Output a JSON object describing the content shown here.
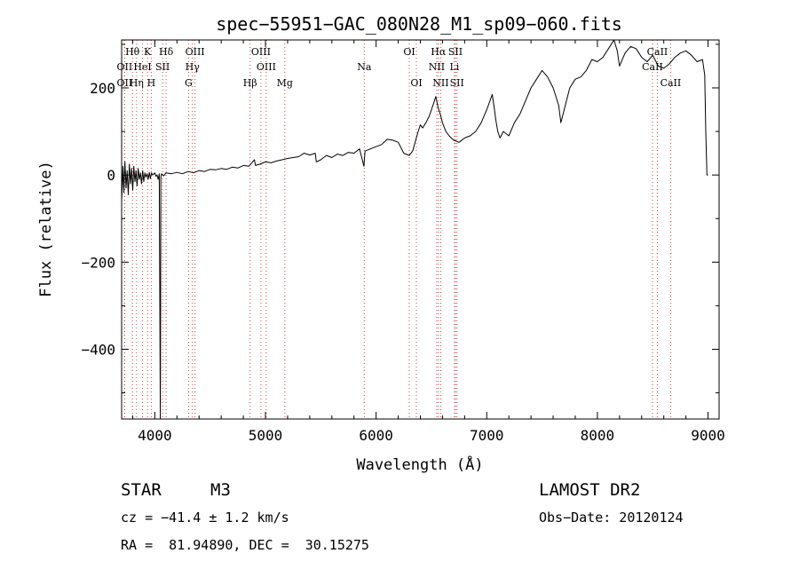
{
  "chart_data": {
    "type": "line",
    "title": "spec−55951−GAC_080N28_M1_sp09−060.fits",
    "xlabel": "Wavelength (Å)",
    "ylabel": "Flux (relative)",
    "xlim": [
      3700,
      9100
    ],
    "ylim": [
      -560,
      310
    ],
    "xticks": [
      4000,
      5000,
      6000,
      7000,
      8000,
      9000
    ],
    "xtick_labels": [
      "4000",
      "5000",
      "6000",
      "7000",
      "8000",
      "9000"
    ],
    "yticks": [
      -400,
      -200,
      0,
      200
    ],
    "ytick_labels": [
      "−400",
      "−200",
      "0",
      "200"
    ],
    "grid": false,
    "series": [
      {
        "points": [
          [
            3700,
            -60
          ],
          [
            3712,
            20
          ],
          [
            3720,
            -40
          ],
          [
            3730,
            30
          ],
          [
            3740,
            -30
          ],
          [
            3750,
            10
          ],
          [
            3760,
            -45
          ],
          [
            3770,
            25
          ],
          [
            3780,
            -20
          ],
          [
            3790,
            15
          ],
          [
            3800,
            -35
          ],
          [
            3810,
            20
          ],
          [
            3820,
            -15
          ],
          [
            3830,
            10
          ],
          [
            3840,
            -25
          ],
          [
            3850,
            15
          ],
          [
            3860,
            -10
          ],
          [
            3870,
            5
          ],
          [
            3880,
            -20
          ],
          [
            3890,
            10
          ],
          [
            3900,
            -15
          ],
          [
            3910,
            5
          ],
          [
            3920,
            -5
          ],
          [
            3930,
            3
          ],
          [
            3940,
            -10
          ],
          [
            3950,
            6
          ],
          [
            3960,
            -8
          ],
          [
            3970,
            5
          ],
          [
            3980,
            0
          ],
          [
            3990,
            2
          ],
          [
            4000,
            5
          ],
          [
            4010,
            -3
          ],
          [
            4020,
            0
          ],
          [
            4030,
            -10
          ],
          [
            4040,
            3
          ],
          [
            4050,
            -560
          ],
          [
            4055,
            -5
          ],
          [
            4060,
            3
          ],
          [
            4080,
            -2
          ],
          [
            4100,
            5
          ],
          [
            4150,
            3
          ],
          [
            4200,
            6
          ],
          [
            4250,
            3
          ],
          [
            4300,
            8
          ],
          [
            4350,
            5
          ],
          [
            4400,
            10
          ],
          [
            4450,
            8
          ],
          [
            4500,
            13
          ],
          [
            4550,
            12
          ],
          [
            4600,
            15
          ],
          [
            4650,
            13
          ],
          [
            4700,
            18
          ],
          [
            4750,
            16
          ],
          [
            4800,
            22
          ],
          [
            4850,
            20
          ],
          [
            4900,
            35
          ],
          [
            4910,
            22
          ],
          [
            4950,
            25
          ],
          [
            5000,
            30
          ],
          [
            5050,
            28
          ],
          [
            5100,
            32
          ],
          [
            5150,
            35
          ],
          [
            5200,
            38
          ],
          [
            5250,
            40
          ],
          [
            5300,
            42
          ],
          [
            5350,
            50
          ],
          [
            5400,
            46
          ],
          [
            5450,
            50
          ],
          [
            5460,
            30
          ],
          [
            5500,
            35
          ],
          [
            5550,
            45
          ],
          [
            5600,
            40
          ],
          [
            5650,
            48
          ],
          [
            5700,
            45
          ],
          [
            5750,
            52
          ],
          [
            5800,
            50
          ],
          [
            5850,
            60
          ],
          [
            5890,
            20
          ],
          [
            5900,
            55
          ],
          [
            5950,
            60
          ],
          [
            6000,
            65
          ],
          [
            6050,
            70
          ],
          [
            6100,
            82
          ],
          [
            6150,
            80
          ],
          [
            6200,
            75
          ],
          [
            6250,
            50
          ],
          [
            6300,
            45
          ],
          [
            6330,
            55
          ],
          [
            6380,
            100
          ],
          [
            6400,
            115
          ],
          [
            6420,
            108
          ],
          [
            6450,
            120
          ],
          [
            6480,
            135
          ],
          [
            6500,
            150
          ],
          [
            6520,
            165
          ],
          [
            6540,
            180
          ],
          [
            6560,
            155
          ],
          [
            6580,
            140
          ],
          [
            6600,
            120
          ],
          [
            6630,
            100
          ],
          [
            6660,
            90
          ],
          [
            6700,
            80
          ],
          [
            6750,
            75
          ],
          [
            6800,
            85
          ],
          [
            6850,
            90
          ],
          [
            6900,
            100
          ],
          [
            6950,
            120
          ],
          [
            7000,
            150
          ],
          [
            7050,
            185
          ],
          [
            7070,
            150
          ],
          [
            7080,
            130
          ],
          [
            7100,
            100
          ],
          [
            7120,
            85
          ],
          [
            7150,
            100
          ],
          [
            7200,
            90
          ],
          [
            7250,
            120
          ],
          [
            7300,
            140
          ],
          [
            7350,
            170
          ],
          [
            7400,
            200
          ],
          [
            7450,
            220
          ],
          [
            7500,
            240
          ],
          [
            7550,
            225
          ],
          [
            7600,
            200
          ],
          [
            7650,
            160
          ],
          [
            7670,
            120
          ],
          [
            7700,
            150
          ],
          [
            7750,
            200
          ],
          [
            7800,
            220
          ],
          [
            7850,
            225
          ],
          [
            7900,
            240
          ],
          [
            7950,
            265
          ],
          [
            8000,
            260
          ],
          [
            8050,
            270
          ],
          [
            8100,
            290
          ],
          [
            8150,
            310
          ],
          [
            8180,
            285
          ],
          [
            8200,
            250
          ],
          [
            8250,
            280
          ],
          [
            8300,
            295
          ],
          [
            8350,
            290
          ],
          [
            8400,
            270
          ],
          [
            8450,
            260
          ],
          [
            8500,
            275
          ],
          [
            8550,
            250
          ],
          [
            8600,
            245
          ],
          [
            8650,
            255
          ],
          [
            8700,
            270
          ],
          [
            8750,
            280
          ],
          [
            8800,
            285
          ],
          [
            8850,
            275
          ],
          [
            8900,
            260
          ],
          [
            8950,
            265
          ],
          [
            8970,
            230
          ],
          [
            8980,
            100
          ],
          [
            8990,
            0
          ],
          [
            9000,
            0
          ]
        ]
      }
    ],
    "line_markers": [
      {
        "label": "Hθ",
        "x": 3798,
        "row": 1
      },
      {
        "label": "K",
        "x": 3934,
        "row": 1
      },
      {
        "label": "Hδ",
        "x": 4102,
        "row": 1
      },
      {
        "label": "OIII",
        "x": 4363,
        "row": 1
      },
      {
        "label": "OIII",
        "x": 4959,
        "row": 1
      },
      {
        "label": "OI",
        "x": 6300,
        "row": 1
      },
      {
        "label": "Hα",
        "x": 6563,
        "row": 1
      },
      {
        "label": "SII",
        "x": 6717,
        "row": 1
      },
      {
        "label": "CaII",
        "x": 8542,
        "row": 1
      },
      {
        "label": "OII",
        "x": 3727,
        "row": 2
      },
      {
        "label": "HeI",
        "x": 3889,
        "row": 2
      },
      {
        "label": "SII",
        "x": 4070,
        "row": 2
      },
      {
        "label": "Hγ",
        "x": 4340,
        "row": 2
      },
      {
        "label": "OIII",
        "x": 5007,
        "row": 2
      },
      {
        "label": "Na",
        "x": 5893,
        "row": 2
      },
      {
        "label": "NII",
        "x": 6548,
        "row": 2
      },
      {
        "label": "Li",
        "x": 6708,
        "row": 2
      },
      {
        "label": "CaII",
        "x": 8498,
        "row": 2
      },
      {
        "label": "OII",
        "x": 3727,
        "row": 3
      },
      {
        "label": "Hη",
        "x": 3835,
        "row": 3
      },
      {
        "label": "H",
        "x": 3968,
        "row": 3
      },
      {
        "label": "G",
        "x": 4305,
        "row": 3
      },
      {
        "label": "Hβ",
        "x": 4861,
        "row": 3
      },
      {
        "label": "Mg",
        "x": 5175,
        "row": 3
      },
      {
        "label": "OI",
        "x": 6364,
        "row": 3
      },
      {
        "label": "NII",
        "x": 6584,
        "row": 3
      },
      {
        "label": "SII",
        "x": 6731,
        "row": 3
      },
      {
        "label": "CaII",
        "x": 8662,
        "row": 3
      }
    ]
  },
  "info": {
    "object_type": "STAR",
    "subclass": "M3",
    "survey": "LAMOST DR2",
    "cz": "cz = −41.4 ± 1.2 km/s",
    "obs_date": "Obs−Date: 20120124",
    "coords": "RA =  81.94890, DEC =  30.15275"
  }
}
